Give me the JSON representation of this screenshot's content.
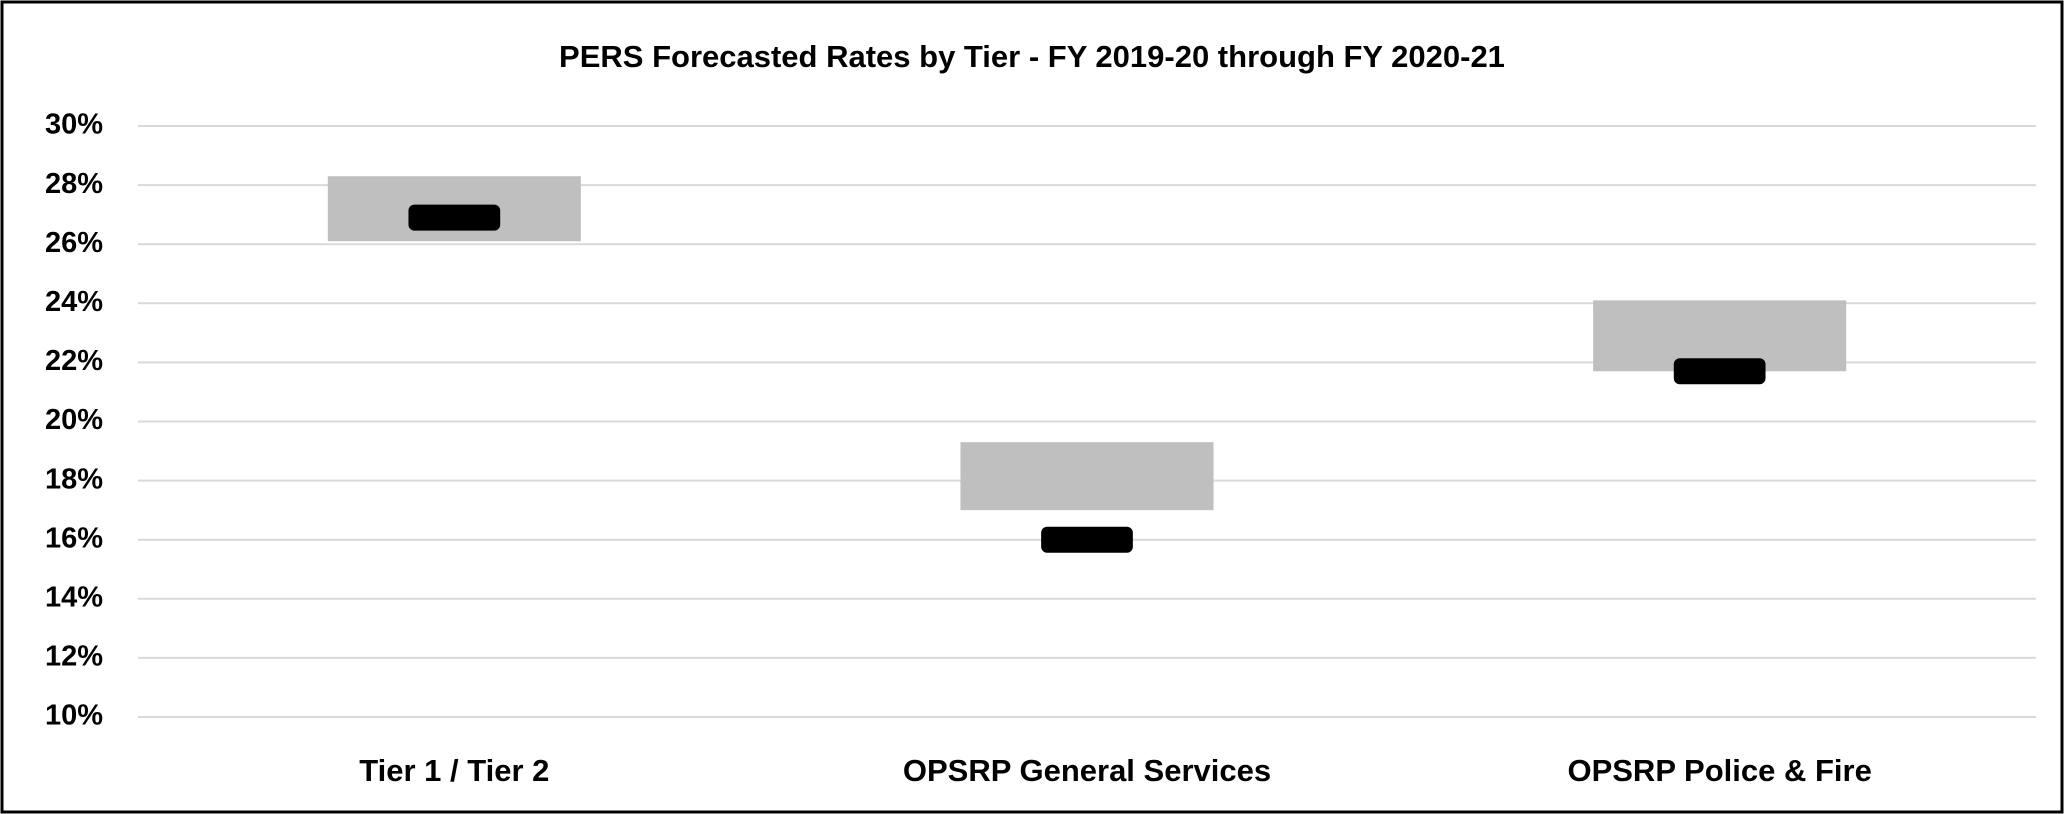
{
  "chart_data": {
    "type": "floating_bar",
    "title": "PERS Forecasted Rates by Tier - FY 2019-20 through FY 2020-21",
    "categories": [
      "Tier 1 / Tier 2",
      "OPSRP General Services",
      "OPSRP Police & Fire"
    ],
    "series": [
      {
        "color": "#bfbfbf",
        "low": [
          26.1,
          17.0,
          21.7
        ],
        "high": [
          28.3,
          19.3,
          24.1
        ]
      },
      {
        "color": "#000000",
        "values": [
          26.9,
          16.0,
          21.7
        ]
      }
    ],
    "ylim": [
      10,
      30
    ],
    "yticks": [
      {
        "value": 10,
        "label": "10%"
      },
      {
        "value": 12,
        "label": "12%"
      },
      {
        "value": 14,
        "label": "14%"
      },
      {
        "value": 16,
        "label": "16%"
      },
      {
        "value": 18,
        "label": "18%"
      },
      {
        "value": 20,
        "label": "20%"
      },
      {
        "value": 22,
        "label": "22%"
      },
      {
        "value": 24,
        "label": "24%"
      },
      {
        "value": 26,
        "label": "26%"
      },
      {
        "value": 28,
        "label": "28%"
      },
      {
        "value": 30,
        "label": "30%"
      }
    ],
    "grid": true
  }
}
